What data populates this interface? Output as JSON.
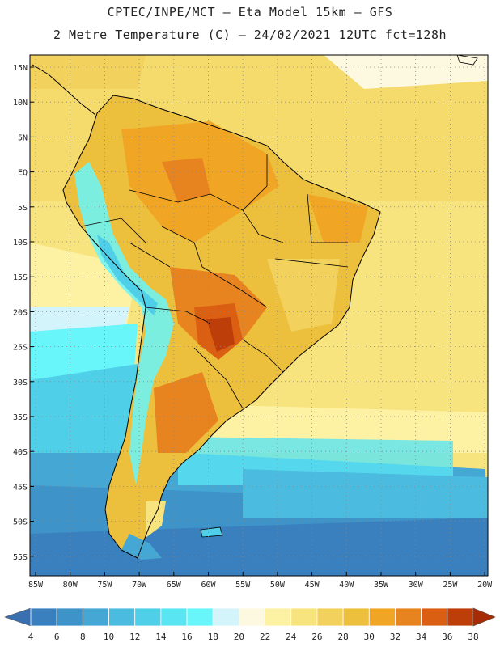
{
  "header": {
    "line1": "CPTEC/INPE/MCT –  Eta Model 15km – GFS",
    "line2": "2 Metre Temperature (C) – 24/02/2021 12UTC fct=128h"
  },
  "map": {
    "lat_labels": [
      "15N",
      "10N",
      "5N",
      "EQ",
      "5S",
      "10S",
      "15S",
      "20S",
      "25S",
      "30S",
      "35S",
      "40S",
      "45S",
      "50S",
      "55S"
    ],
    "lon_labels": [
      "85W",
      "80W",
      "75W",
      "70W",
      "65W",
      "60W",
      "55W",
      "50W",
      "45W",
      "40W",
      "35W",
      "30W",
      "25W",
      "20W"
    ]
  },
  "colorbar": {
    "labels": [
      "4",
      "6",
      "8",
      "10",
      "12",
      "14",
      "16",
      "18",
      "20",
      "22",
      "24",
      "26",
      "28",
      "30",
      "32",
      "34",
      "36",
      "38"
    ],
    "colors": [
      "#3a6fb0",
      "#3a80bf",
      "#3e93c9",
      "#44a7d4",
      "#4bbcdf",
      "#4fd0e8",
      "#5ae5f2",
      "#68f6fb",
      "#d4f4fb",
      "#fdf8e0",
      "#fdf1a4",
      "#f8e47e",
      "#f2d15c",
      "#ecbf3d",
      "#f0a624",
      "#e88420",
      "#da5f12",
      "#bd3e08",
      "#a52c06"
    ]
  }
}
